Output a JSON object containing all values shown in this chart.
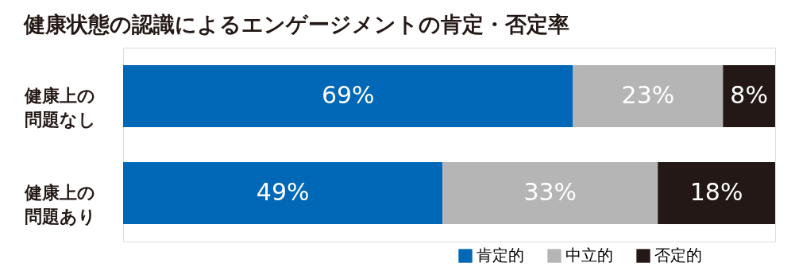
{
  "chart_data": {
    "type": "bar",
    "orientation": "horizontal",
    "stacked": true,
    "title": "健康状態の認識によるエンゲージメントの肯定・否定率",
    "categories": [
      "健康上の問題なし",
      "健康上の問題あり"
    ],
    "series": [
      {
        "name": "肯定的",
        "color": "#0068b7",
        "values": [
          69,
          49
        ],
        "value_labels": [
          "69%",
          "49%"
        ]
      },
      {
        "name": "中立的",
        "color": "#b5b5b5",
        "values": [
          23,
          33
        ],
        "value_labels": [
          "23%",
          "33%"
        ]
      },
      {
        "name": "否定的",
        "color": "#231815",
        "values": [
          8,
          18
        ],
        "value_labels": [
          "8%",
          "18%"
        ]
      }
    ],
    "legend": "bottom right",
    "grid": false
  }
}
